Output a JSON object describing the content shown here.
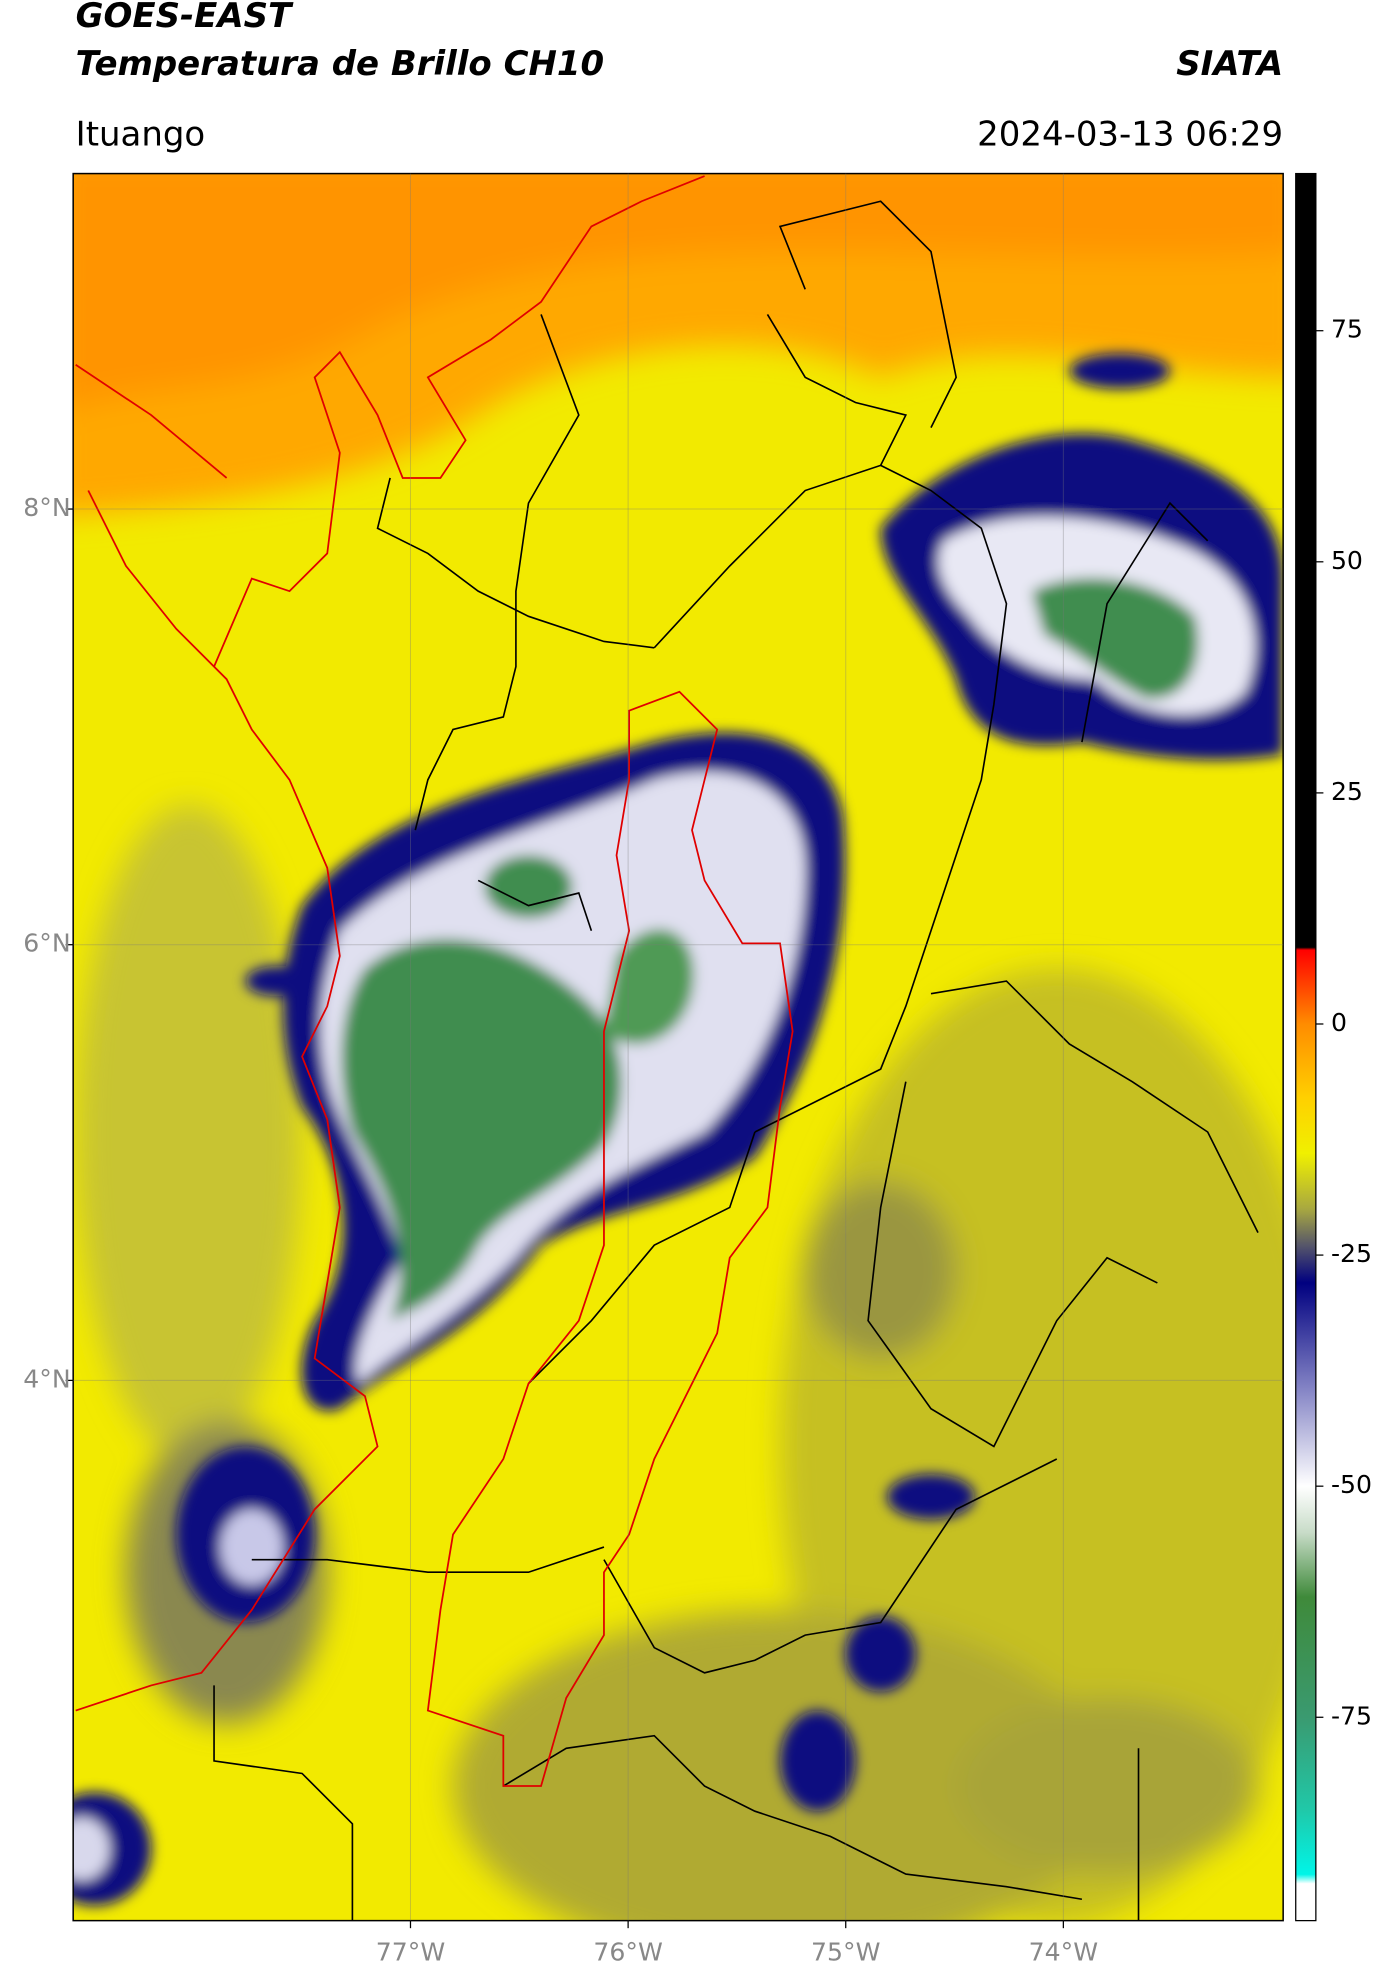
{
  "header": {
    "title": "GOES-EAST",
    "subtitle": "Temperatura de Brillo CH10",
    "source": "SIATA",
    "location": "Ituango",
    "datetime": "2024-03-13 06:29"
  },
  "map": {
    "xlim": [
      -78.55,
      -72.99
    ],
    "ylim": [
      1.52,
      9.54
    ],
    "grid": true,
    "xticks": [
      {
        "value": -77,
        "label": "77°W"
      },
      {
        "value": -76,
        "label": "76°W"
      },
      {
        "value": -75,
        "label": "75°W"
      },
      {
        "value": -74,
        "label": "74°W"
      }
    ],
    "yticks": [
      {
        "value": 8,
        "label": "8°N"
      },
      {
        "value": 6,
        "label": "6°N"
      },
      {
        "value": 4,
        "label": "4°N"
      }
    ]
  },
  "colorbar": {
    "lim": [
      -97,
      92
    ],
    "ticks": [
      75,
      50,
      25,
      0,
      -25,
      -50,
      -75
    ],
    "stops": [
      {
        "value": -97,
        "color": "#ffffff"
      },
      {
        "value": -93,
        "color": "#ffffff"
      },
      {
        "value": -92,
        "color": "#00f5e8"
      },
      {
        "value": -85,
        "color": "#20c8a8"
      },
      {
        "value": -75,
        "color": "#3a9a70"
      },
      {
        "value": -62,
        "color": "#3f8a3a"
      },
      {
        "value": -55,
        "color": "#c8dcc8"
      },
      {
        "value": -50,
        "color": "#ffffff"
      },
      {
        "value": -40,
        "color": "#8a8ac8"
      },
      {
        "value": -28,
        "color": "#000080"
      },
      {
        "value": -24,
        "color": "#55556a"
      },
      {
        "value": -20,
        "color": "#a8a840"
      },
      {
        "value": -14,
        "color": "#f0f000"
      },
      {
        "value": -8,
        "color": "#ffd000"
      },
      {
        "value": 0,
        "color": "#ff8c00"
      },
      {
        "value": 8,
        "color": "#ff0000"
      },
      {
        "value": 8.3,
        "color": "#000000"
      },
      {
        "value": 92,
        "color": "#000000"
      }
    ]
  }
}
